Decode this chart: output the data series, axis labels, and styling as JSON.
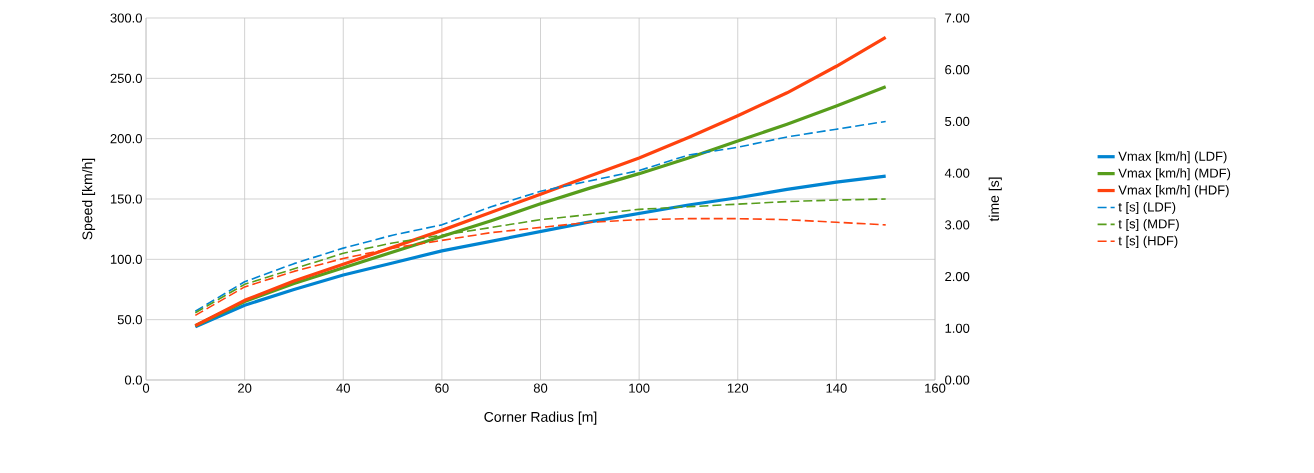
{
  "chart_data": {
    "type": "line",
    "xlabel": "Corner Radius [m]",
    "ylabel": "Speed [km/h]",
    "y2label": "time [s]",
    "x": [
      10,
      20,
      30,
      40,
      50,
      60,
      70,
      80,
      90,
      100,
      110,
      120,
      130,
      140,
      150
    ],
    "xlim": [
      0,
      160
    ],
    "xticks": [
      0,
      20,
      40,
      60,
      80,
      100,
      120,
      140,
      160
    ],
    "ylim": [
      0,
      300
    ],
    "yticks": [
      {
        "value": 0,
        "label": "0.0"
      },
      {
        "value": 50,
        "label": "50.0"
      },
      {
        "value": 100,
        "label": "100.0"
      },
      {
        "value": 150,
        "label": "150.0"
      },
      {
        "value": 200,
        "label": "200.0"
      },
      {
        "value": 250,
        "label": "250.0"
      },
      {
        "value": 300,
        "label": "300.0"
      }
    ],
    "y2lim": [
      0,
      7
    ],
    "y2ticks": [
      {
        "value": 0,
        "label": "0.00"
      },
      {
        "value": 1,
        "label": "1.00"
      },
      {
        "value": 2,
        "label": "2.00"
      },
      {
        "value": 3,
        "label": "3.00"
      },
      {
        "value": 4,
        "label": "4.00"
      },
      {
        "value": 5,
        "label": "5.00"
      },
      {
        "value": 6,
        "label": "6.00"
      },
      {
        "value": 7,
        "label": "7.00"
      }
    ],
    "grid": true,
    "legend": "right",
    "marker": "none",
    "series": [
      {
        "name": "Vmax [km/h] (LDF)",
        "color": "#0084d1",
        "line_style": "solid",
        "values": [
          44,
          62,
          75,
          87,
          97,
          107,
          115,
          123,
          131,
          138,
          145,
          151,
          158,
          164,
          169
        ]
      },
      {
        "name": "Vmax [km/h] (MDF)",
        "color": "#579d1c",
        "line_style": "solid",
        "values": [
          45,
          65,
          80,
          93,
          106,
          119,
          132,
          146,
          159,
          171,
          184,
          198,
          212,
          227,
          243
        ]
      },
      {
        "name": "Vmax [km/h] (HDF)",
        "color": "#ff420e",
        "line_style": "solid",
        "values": [
          45,
          66,
          82,
          96,
          110,
          124,
          139,
          154,
          169,
          184,
          201,
          219,
          238,
          260,
          284
        ]
      },
      {
        "name": "t [s] (LDF)",
        "color": "#0084d1",
        "line_style": "dashed",
        "axis": "y2",
        "values": [
          1.33,
          1.9,
          2.25,
          2.55,
          2.8,
          3.0,
          3.35,
          3.65,
          3.85,
          4.05,
          4.35,
          4.5,
          4.7,
          4.85,
          5.0
        ]
      },
      {
        "name": "t [s] (MDF)",
        "color": "#579d1c",
        "line_style": "dashed",
        "axis": "y2",
        "values": [
          1.3,
          1.85,
          2.15,
          2.45,
          2.65,
          2.8,
          2.95,
          3.1,
          3.2,
          3.3,
          3.35,
          3.4,
          3.45,
          3.48,
          3.5
        ]
      },
      {
        "name": "t [s] (HDF)",
        "color": "#ff420e",
        "line_style": "dashed",
        "axis": "y2",
        "values": [
          1.25,
          1.8,
          2.1,
          2.35,
          2.55,
          2.7,
          2.85,
          2.95,
          3.05,
          3.1,
          3.12,
          3.12,
          3.1,
          3.05,
          3.0
        ]
      }
    ]
  }
}
